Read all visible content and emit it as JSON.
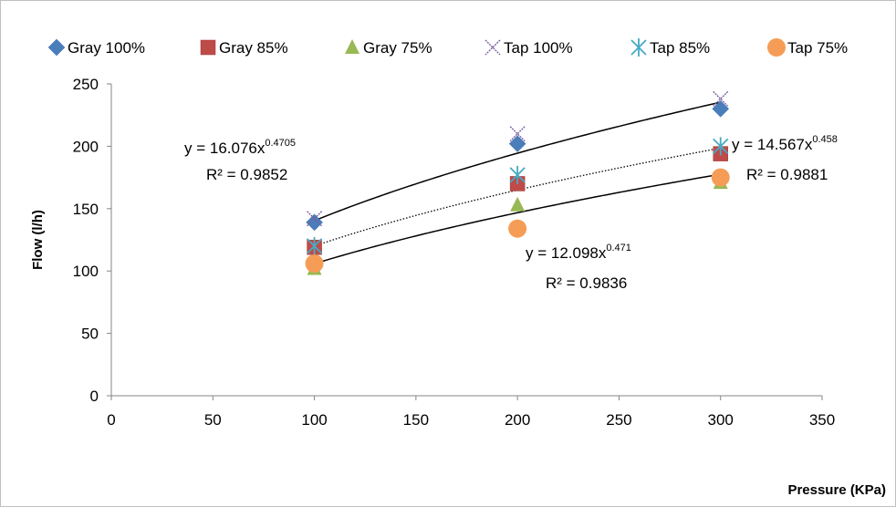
{
  "chart_data": {
    "type": "scatter",
    "xlabel": "Pressure (KPa)",
    "ylabel": "Flow (l/h)",
    "xlim": [
      0,
      350
    ],
    "ylim": [
      0,
      250
    ],
    "xticks": [
      0,
      50,
      100,
      150,
      200,
      250,
      300,
      350
    ],
    "yticks": [
      0,
      50,
      100,
      150,
      200,
      250
    ],
    "grid": false,
    "legend_position": "top",
    "series": [
      {
        "name": "Gray 100%",
        "marker": "diamond",
        "color": "#4a7ebb",
        "x": [
          100,
          200,
          300
        ],
        "y": [
          139,
          202,
          230
        ]
      },
      {
        "name": "Gray 85%",
        "marker": "square",
        "color": "#be4b48",
        "x": [
          100,
          200,
          300
        ],
        "y": [
          119,
          170,
          194
        ]
      },
      {
        "name": "Gray 75%",
        "marker": "triangle",
        "color": "#98b954",
        "x": [
          100,
          200,
          300
        ],
        "y": [
          102,
          153,
          171
        ]
      },
      {
        "name": "Tap 100%",
        "marker": "x",
        "color": "#7d60a0",
        "x": [
          100,
          200,
          300
        ],
        "y": [
          142,
          210,
          238
        ]
      },
      {
        "name": "Tap 85%",
        "marker": "star",
        "color": "#46aac5",
        "x": [
          100,
          200,
          300
        ],
        "y": [
          120,
          177,
          200
        ]
      },
      {
        "name": "Tap 75%",
        "marker": "circle",
        "color": "#f59d56",
        "x": [
          100,
          200,
          300
        ],
        "y": [
          106,
          134,
          175
        ]
      }
    ],
    "trendlines": [
      {
        "a": 16.076,
        "b": 0.4705,
        "style": "solid",
        "eq_text": "y = 16.076x",
        "eq_exp": "0.4705",
        "r2_text": "R² = 0.9852"
      },
      {
        "a": 14.567,
        "b": 0.458,
        "style": "dotted",
        "eq_text": "y = 14.567x",
        "eq_exp": "0.458",
        "r2_text": "R² = 0.9881"
      },
      {
        "a": 12.098,
        "b": 0.471,
        "style": "solid",
        "eq_text": "y = 12.098x",
        "eq_exp": "0.471",
        "r2_text": "R² = 0.9836"
      }
    ]
  }
}
